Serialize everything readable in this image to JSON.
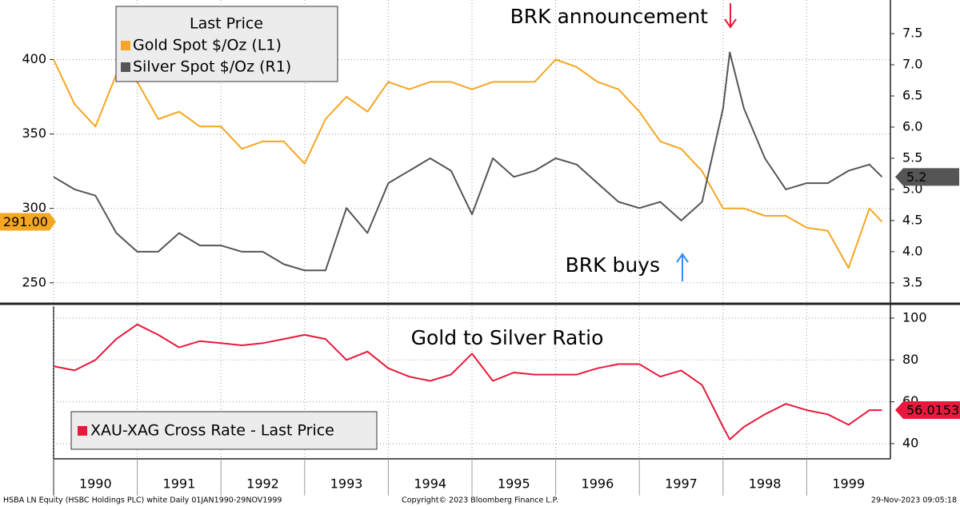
{
  "chart_data": [
    {
      "type": "line",
      "legend_title": "Last Price",
      "annotations": [
        "BRK announcement",
        "BRK buys"
      ],
      "x": [
        1990,
        1990.25,
        1990.5,
        1990.75,
        1991,
        1991.25,
        1991.5,
        1991.75,
        1992,
        1992.25,
        1992.5,
        1992.75,
        1993,
        1993.25,
        1993.5,
        1993.75,
        1994,
        1994.25,
        1994.5,
        1994.75,
        1995,
        1995.25,
        1995.5,
        1995.75,
        1996,
        1996.25,
        1996.5,
        1996.75,
        1997,
        1997.25,
        1997.5,
        1997.75,
        1998,
        1998.08,
        1998.25,
        1998.5,
        1998.75,
        1999,
        1999.25,
        1999.5,
        1999.75,
        1999.9
      ],
      "xlim": [
        1990,
        2000
      ],
      "ylim": [
        237,
        440
      ],
      "yticks": [
        250,
        300,
        350,
        400
      ],
      "y2lim": [
        3.19,
        8.04
      ],
      "y2ticks": [
        3.5,
        {
          "value": 4,
          "label": "4.0"
        },
        4.5,
        {
          "value": 5,
          "label": "5.0"
        },
        5.5,
        {
          "value": 6,
          "label": "6.0"
        },
        6.5,
        {
          "value": 7,
          "label": "7.0"
        },
        7.5
      ],
      "grid": true,
      "series": [
        {
          "name": "Gold Spot $/Oz  (L1)",
          "color": "#f5a623",
          "last_label": "291.00",
          "values": [
            400,
            370,
            355,
            390,
            385,
            360,
            365,
            355,
            355,
            340,
            345,
            345,
            330,
            360,
            375,
            365,
            385,
            380,
            385,
            385,
            380,
            385,
            385,
            385,
            400,
            395,
            385,
            380,
            365,
            345,
            340,
            325,
            300,
            300,
            300,
            295,
            295,
            287,
            285,
            260,
            300,
            291
          ]
        },
        {
          "name": "Silver Spot $/Oz  (R1)",
          "color": "#555555",
          "axis": "y2",
          "last_label": "5.2",
          "values": [
            5.2,
            5.0,
            4.9,
            4.3,
            4.0,
            4.0,
            4.3,
            4.1,
            4.1,
            4.0,
            4.0,
            3.8,
            3.7,
            3.7,
            4.7,
            4.3,
            5.1,
            5.3,
            5.5,
            5.3,
            4.6,
            5.5,
            5.2,
            5.3,
            5.5,
            5.4,
            5.1,
            4.8,
            4.7,
            4.8,
            4.5,
            4.8,
            6.3,
            7.2,
            6.3,
            5.5,
            5.0,
            5.1,
            5.1,
            5.3,
            5.4,
            5.2
          ]
        }
      ]
    },
    {
      "type": "line",
      "title": "Gold to Silver Ratio",
      "x": [
        1990,
        1990.25,
        1990.5,
        1990.75,
        1991,
        1991.25,
        1991.5,
        1991.75,
        1992,
        1992.25,
        1992.5,
        1992.75,
        1993,
        1993.25,
        1993.5,
        1993.75,
        1994,
        1994.25,
        1994.5,
        1994.75,
        1995,
        1995.25,
        1995.5,
        1995.75,
        1996,
        1996.25,
        1996.5,
        1996.75,
        1997,
        1997.25,
        1997.5,
        1997.75,
        1998,
        1998.08,
        1998.25,
        1998.5,
        1998.75,
        1999,
        1999.25,
        1999.5,
        1999.75,
        1999.9
      ],
      "xlim": [
        1990,
        2000
      ],
      "xticks": [
        1990,
        1991,
        1992,
        1993,
        1994,
        1995,
        1996,
        1997,
        1998,
        1999
      ],
      "ylim": [
        33.5,
        105.7
      ],
      "yticks": [
        40,
        60,
        80,
        100
      ],
      "grid": true,
      "series": [
        {
          "name": "XAU-XAG Cross Rate - Last Price",
          "color": "#e8193c",
          "last_label": "56.0153",
          "values": [
            77,
            75,
            80,
            90,
            97,
            92,
            86,
            89,
            88,
            87,
            88,
            90,
            92,
            90,
            80,
            84,
            76,
            72,
            70,
            73,
            83,
            70,
            74,
            73,
            73,
            73,
            76,
            78,
            78,
            72,
            75,
            68,
            48,
            42,
            48,
            54,
            59,
            56,
            54,
            49,
            56,
            56.0153
          ]
        }
      ]
    }
  ],
  "footer": {
    "left": "HSBA LN Equity (HSBC Holdings PLC) white  Daily 01JAN1990-29NOV1999",
    "center": "Copyright© 2023 Bloomberg Finance L.P.",
    "right": "29-Nov-2023 09:05:18"
  }
}
